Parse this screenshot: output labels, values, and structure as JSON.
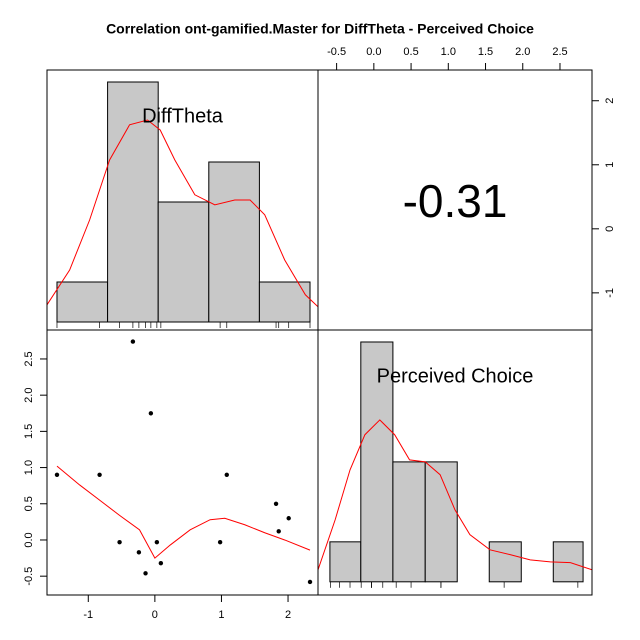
{
  "title": "Correlation ont-gamified.Master for DiffTheta - Perceived Choice",
  "chart_data": [
    {
      "type": "histogram",
      "label": "DiffTheta",
      "color": "#c8c8c8",
      "bins": [
        -1.47,
        -0.71,
        0.05,
        0.81,
        1.57,
        2.33
      ],
      "counts": [
        1,
        6,
        3,
        4,
        1
      ],
      "xlim": [
        -1.62,
        2.45
      ],
      "ylim": [
        -0.2,
        6.3
      ],
      "density": {
        "color": "#ff0000",
        "x": [
          -1.62,
          -1.28,
          -0.98,
          -0.68,
          -0.38,
          -0.11,
          0.08,
          0.3,
          0.6,
          0.9,
          1.2,
          1.43,
          1.65,
          1.95,
          2.26,
          2.45
        ],
        "y": [
          0.43,
          1.3,
          2.55,
          4.05,
          4.93,
          5.05,
          4.8,
          4.05,
          3.18,
          2.93,
          3.05,
          3.05,
          2.68,
          1.55,
          0.68,
          0.38
        ]
      }
    },
    {
      "type": "correlation",
      "value": -0.31,
      "xlim": [
        -0.75,
        2.93
      ],
      "xticks": [
        -0.5,
        {
          "value": 0,
          "label": "0.0"
        },
        0.5,
        {
          "value": 1,
          "label": "1.0"
        },
        1.5,
        {
          "value": 2,
          "label": "2.0"
        },
        2.5
      ],
      "ylim": [
        -1.58,
        2.48
      ],
      "yticks": [
        -1,
        0,
        1,
        2
      ]
    },
    {
      "type": "scatter",
      "x": [
        -1.47,
        -0.83,
        -0.53,
        -0.33,
        -0.24,
        -0.14,
        -0.06,
        0.03,
        0.09,
        0.98,
        1.08,
        1.82,
        1.86,
        2.01,
        2.33
      ],
      "y": [
        0.9,
        0.9,
        -0.03,
        2.74,
        -0.17,
        -0.46,
        1.75,
        -0.03,
        -0.32,
        -0.03,
        0.9,
        0.5,
        0.12,
        0.3,
        -0.58
      ],
      "xlim": [
        -1.62,
        2.45
      ],
      "xticks": [
        -1,
        0,
        1,
        2
      ],
      "ylim": [
        -0.76,
        2.9
      ],
      "yticks": [
        -0.5,
        {
          "value": 0,
          "label": "0.0"
        },
        0.5,
        {
          "value": 1,
          "label": "1.0"
        },
        1.5,
        {
          "value": 2,
          "label": "2.0"
        },
        2.5
      ],
      "fit": {
        "color": "#ff0000",
        "x": [
          -1.47,
          -1.13,
          -0.83,
          -0.53,
          -0.23,
          0,
          0.23,
          0.53,
          0.83,
          1.05,
          1.35,
          1.65,
          1.95,
          2.33
        ],
        "y": [
          1.02,
          0.76,
          0.55,
          0.34,
          0.14,
          -0.25,
          -0.07,
          0.14,
          0.28,
          0.3,
          0.21,
          0.1,
          0,
          -0.14
        ]
      }
    },
    {
      "type": "histogram",
      "label": "Perceived Choice",
      "color": "#c8c8c8",
      "bins": [
        -0.59,
        -0.175,
        0.256,
        0.69,
        1.12,
        1.55,
        1.98,
        2.41,
        2.81
      ],
      "counts": [
        1,
        6,
        3,
        3,
        0,
        1,
        0,
        1
      ],
      "xlim": [
        -0.75,
        2.93
      ],
      "ylim": [
        -0.33,
        6.3
      ],
      "density": {
        "color": "#ff0000",
        "x": [
          -0.75,
          -0.52,
          -0.32,
          -0.12,
          0.08,
          0.28,
          0.48,
          0.69,
          0.89,
          1.09,
          1.29,
          1.56,
          1.83,
          2.1,
          2.37,
          2.64,
          2.93
        ],
        "y": [
          0.3,
          1.55,
          2.8,
          3.68,
          4.05,
          3.68,
          3.05,
          3.0,
          2.68,
          1.8,
          1.18,
          0.8,
          0.68,
          0.55,
          0.5,
          0.48,
          0.3
        ]
      }
    }
  ]
}
